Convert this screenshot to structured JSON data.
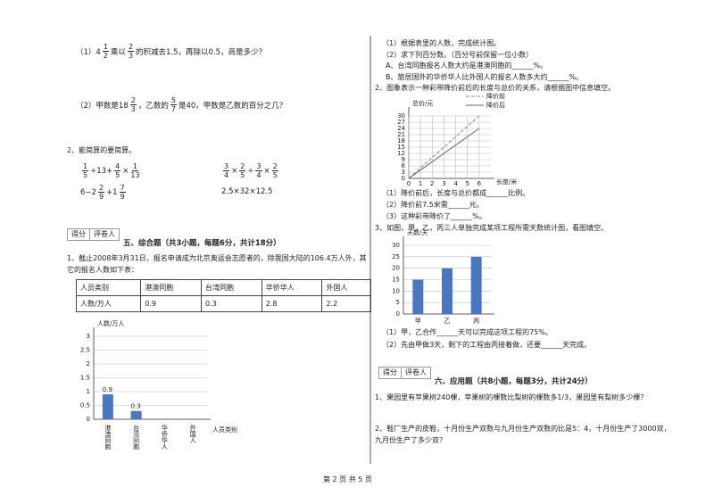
{
  "left": {
    "q1": [
      "（1）4",
      {
        "n": "1",
        "d": "2"
      },
      "乘以",
      {
        "n": "2",
        "d": "3"
      },
      "的积减去1.5，再除以0.5，商是多少？"
    ],
    "q2": [
      "（2）甲数是18",
      {
        "n": "2",
        "d": "3"
      },
      "，乙数的",
      {
        "n": "5",
        "d": "7"
      },
      "是40，甲数是乙数的百分之几？"
    ],
    "q2_title": "2、能简算的要简算。",
    "exprs": [
      [
        {
          "n": "1",
          "d": "5"
        },
        "÷13+",
        {
          "n": "4",
          "d": "5"
        },
        "×",
        {
          "n": "1",
          "d": "13"
        }
      ],
      [
        {
          "n": "3",
          "d": "4"
        },
        "×",
        {
          "n": "2",
          "d": "5"
        },
        "÷",
        {
          "n": "3",
          "d": "4"
        },
        "×",
        {
          "n": "2",
          "d": "5"
        }
      ],
      [
        "6−2",
        {
          "n": "2",
          "d": "9"
        },
        "+1",
        {
          "n": "7",
          "d": "9"
        }
      ],
      [
        "2.5×32×12.5"
      ]
    ],
    "score_box": {
      "score": "得分",
      "grader": "评卷人"
    },
    "section": "五、综合题（共3小题，每题6分，共计18分）",
    "q5_1": "1、截止2008年3月31日，报名申请成为北京奥运会志愿者的，除我国大陆的106.4万人外，其",
    "q5_1_cont": "它的报名人数如下表：",
    "table": {
      "header": [
        "人员类别",
        "港澳同胞",
        "台湾同胞",
        "华侨华人",
        "外国人"
      ],
      "rows": [
        [
          "人数/万人",
          "0.9",
          "0.3",
          "2.8",
          "2.2"
        ]
      ]
    }
  },
  "right": {
    "lines_top": [
      "（1）根据表里的人数，完成统计图。",
      "（2）求下列百分数。（百分号前保留一位小数）",
      "A、台湾同胞报名人数大约是港澳同胞的______%。",
      "B、旅居国外的华侨华人比外国人的报名人数多大约______%。"
    ],
    "q2": "2、图象表示一种彩带降价前后的长度与总价的关系，请根据图中信息填空。",
    "q2_items": [
      "（1）降价前后，长度与总价都成______比例。",
      "（2）降价前7.5米需______元。",
      "（3）这种彩带降价了______%。"
    ],
    "q3": "3、如图，甲，乙，丙三人单独完成某项工程所需天数统计图，看图填空。",
    "q3_items": [
      "（1）甲，乙合作______天可以完成这项工程的75%。",
      "（2）先由甲做3天，剩下的工程由丙接着做，还要______天完成。"
    ],
    "score_box": {
      "score": "得分",
      "grader": "评卷人"
    },
    "section": "六、应用题（共8小题，每题3分，共计24分）",
    "app1": "1、果园里有苹果树240棵，苹果树的棵数比梨树的棵数多1/3，果园里有梨树多少棵？",
    "app2": [
      "2、鞋厂生产的皮鞋，十月份生产双数与九月份生产双数的比是5：4，十月份生产了3000双，",
      "九月份生产了多少双？"
    ]
  },
  "footer": "第 2 页 共 5 页",
  "chart_data": [
    {
      "type": "bar",
      "y_label": "人数/万人",
      "x_label": "人员类别",
      "categories": [
        "港澳同胞",
        "台湾同胞",
        "华侨华人",
        "外国人"
      ],
      "values": [
        0.9,
        0.3,
        null,
        null
      ],
      "value_labels": [
        "0.9",
        "0.3",
        null,
        null
      ],
      "color": "#4a78c0",
      "ylim": [
        0,
        3
      ],
      "yticks": [
        0,
        0.5,
        1,
        1.5,
        2,
        2.5,
        3
      ],
      "grid": true
    },
    {
      "type": "line",
      "y_label": "总价/元",
      "x_label": "长度/米",
      "x": [
        0,
        1,
        2,
        3,
        4,
        5,
        6
      ],
      "series": [
        {
          "name": "降价前",
          "color": "#888888",
          "dashed": true,
          "values": [
            0,
            5,
            10,
            15,
            20,
            25,
            30
          ]
        },
        {
          "name": "降价后",
          "color": "#666666",
          "dashed": false,
          "values": [
            0,
            4,
            8,
            12,
            16,
            20,
            24
          ]
        }
      ],
      "xlim": [
        0,
        7
      ],
      "ylim": [
        0,
        30
      ],
      "xticks": [
        0,
        1,
        2,
        3,
        4,
        5,
        6
      ],
      "yticks": [
        0,
        3,
        6,
        9,
        12,
        15,
        18,
        21,
        24,
        27,
        30
      ],
      "grid": true
    },
    {
      "type": "bar",
      "y_label": "天数/天",
      "categories": [
        "甲",
        "乙",
        "丙"
      ],
      "values": [
        15,
        20,
        25
      ],
      "color": "#4a78c0",
      "ylim": [
        0,
        30
      ],
      "yticks": [
        0,
        5,
        10,
        15,
        20,
        25,
        30
      ],
      "grid": true
    }
  ]
}
